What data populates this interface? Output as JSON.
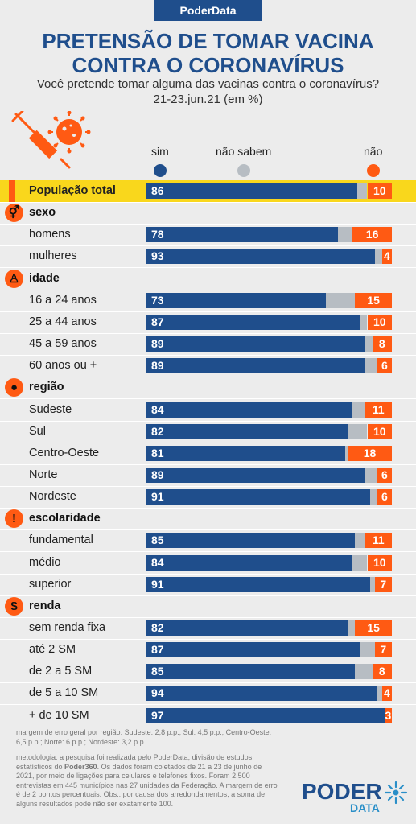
{
  "brand": "PoderData",
  "title_line1": "PRETENSÃO DE TOMAR VACINA",
  "title_line2": "CONTRA O CORONAVÍRUS",
  "subtitle_line1": "Você pretende tomar alguma das vacinas contra o coronavírus?",
  "subtitle_line2": "21-23.jun.21 (em %)",
  "legend": {
    "sim": "sim",
    "nao_sabem": "não sabem",
    "nao": "não",
    "colors": {
      "sim": "#1f4e8c",
      "nao_sabem": "#b7bdc3",
      "nao": "#ff5a13"
    }
  },
  "chart_data": {
    "type": "bar",
    "stacked": true,
    "orientation": "horizontal",
    "unit": "%",
    "series_names": [
      "sim",
      "não sabem",
      "não"
    ],
    "rows": [
      {
        "kind": "total",
        "label": "População total",
        "sim": 86,
        "nao": 10
      },
      {
        "kind": "category",
        "label": "sexo",
        "icon": "gender-icon"
      },
      {
        "kind": "row",
        "label": "homens",
        "sim": 78,
        "nao": 16
      },
      {
        "kind": "row",
        "label": "mulheres",
        "sim": 93,
        "nao": 4
      },
      {
        "kind": "category",
        "label": "idade",
        "icon": "person-icon"
      },
      {
        "kind": "row",
        "label": "16 a 24 anos",
        "sim": 73,
        "nao": 15
      },
      {
        "kind": "row",
        "label": "25 a 44 anos",
        "sim": 87,
        "nao": 10
      },
      {
        "kind": "row",
        "label": "45 a 59 anos",
        "sim": 89,
        "nao": 8
      },
      {
        "kind": "row",
        "label": "60 anos ou +",
        "sim": 89,
        "nao": 6
      },
      {
        "kind": "category",
        "label": "região",
        "icon": "brazil-map-icon"
      },
      {
        "kind": "row",
        "label": "Sudeste",
        "sim": 84,
        "nao": 11
      },
      {
        "kind": "row",
        "label": "Sul",
        "sim": 82,
        "nao": 10
      },
      {
        "kind": "row",
        "label": "Centro-Oeste",
        "sim": 81,
        "nao": 18
      },
      {
        "kind": "row",
        "label": "Norte",
        "sim": 89,
        "nao": 6
      },
      {
        "kind": "row",
        "label": "Nordeste",
        "sim": 91,
        "nao": 6
      },
      {
        "kind": "category",
        "label": "escolaridade",
        "icon": "exclamation-icon"
      },
      {
        "kind": "row",
        "label": "fundamental",
        "sim": 85,
        "nao": 11
      },
      {
        "kind": "row",
        "label": "médio",
        "sim": 84,
        "nao": 10
      },
      {
        "kind": "row",
        "label": "superior",
        "sim": 91,
        "nao": 7
      },
      {
        "kind": "category",
        "label": "renda",
        "icon": "dollar-icon"
      },
      {
        "kind": "row",
        "label": "sem renda fixa",
        "sim": 82,
        "nao": 15
      },
      {
        "kind": "row",
        "label": "até 2 SM",
        "sim": 87,
        "nao": 7
      },
      {
        "kind": "row",
        "label": "de 2 a 5 SM",
        "sim": 85,
        "nao": 8
      },
      {
        "kind": "row",
        "label": "de 5 a 10 SM",
        "sim": 94,
        "nao": 4
      },
      {
        "kind": "row",
        "label": "+ de 10 SM",
        "sim": 97,
        "nao": 3
      }
    ]
  },
  "notes": {
    "margin": "margem de erro geral por região: Sudeste: 2,8 p.p.; Sul: 4,5 p.p.; Centro-Oeste: 6,5 p.p.; Norte: 6 p.p.; Nordeste: 3,2 p.p.",
    "method_pre": "metodologia: a pesquisa foi realizada pelo PoderData, divisão de estudos estatísticos do ",
    "method_bold": "Poder360",
    "method_post": ". Os dados foram coletados de 21 a 23 de junho de 2021, por meio de ligações para celulares e telefones fixos. Foram 2.500 entrevistas em 445 municípios nas 27 unidades da Federação. A margem de erro é de 2 pontos percentuais. Obs.: por causa dos arredondamentos, a soma de alguns resultados pode não ser exatamente 100."
  },
  "logo": {
    "line1": "PODER",
    "line2": "DATA"
  },
  "icons": {
    "illustration": "syringe-virus-icon",
    "logo_mark": "sunburst-icon"
  }
}
